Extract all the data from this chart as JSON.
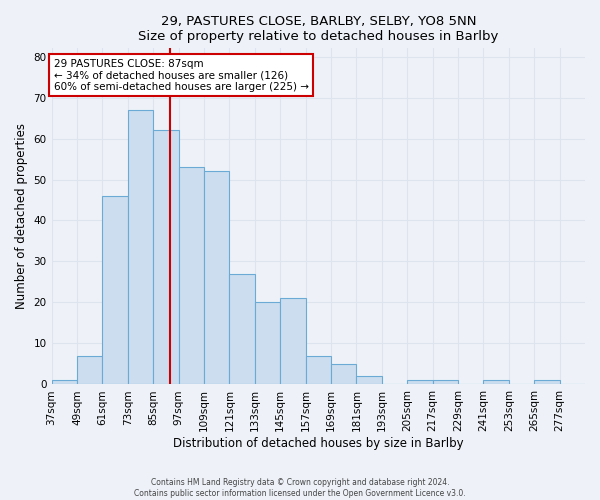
{
  "title": "29, PASTURES CLOSE, BARLBY, SELBY, YO8 5NN",
  "subtitle": "Size of property relative to detached houses in Barlby",
  "xlabel": "Distribution of detached houses by size in Barlby",
  "ylabel": "Number of detached properties",
  "bar_color": "#ccddf0",
  "bar_edge_color": "#6aaad4",
  "bin_labels": [
    "37sqm",
    "49sqm",
    "61sqm",
    "73sqm",
    "85sqm",
    "97sqm",
    "109sqm",
    "121sqm",
    "133sqm",
    "145sqm",
    "157sqm",
    "169sqm",
    "181sqm",
    "193sqm",
    "205sqm",
    "217sqm",
    "229sqm",
    "241sqm",
    "253sqm",
    "265sqm",
    "277sqm"
  ],
  "bin_edges": [
    31,
    43,
    55,
    67,
    79,
    91,
    103,
    115,
    127,
    139,
    151,
    163,
    175,
    187,
    199,
    211,
    223,
    235,
    247,
    259,
    271,
    283
  ],
  "bar_heights": [
    1,
    7,
    46,
    67,
    62,
    53,
    52,
    27,
    20,
    21,
    7,
    5,
    2,
    0,
    1,
    1,
    0,
    1,
    0,
    1,
    0
  ],
  "property_size": 87,
  "property_line_color": "#cc0000",
  "annotation_line1": "29 PASTURES CLOSE: 87sqm",
  "annotation_line2": "← 34% of detached houses are smaller (126)",
  "annotation_line3": "60% of semi-detached houses are larger (225) →",
  "annotation_box_color": "#ffffff",
  "annotation_box_edge_color": "#cc0000",
  "ylim": [
    0,
    82
  ],
  "yticks": [
    0,
    10,
    20,
    30,
    40,
    50,
    60,
    70,
    80
  ],
  "grid_color": "#dde4ee",
  "background_color": "#eef2f8",
  "footer_line1": "Contains HM Land Registry data © Crown copyright and database right 2024.",
  "footer_line2": "Contains public sector information licensed under the Open Government Licence v3.0."
}
